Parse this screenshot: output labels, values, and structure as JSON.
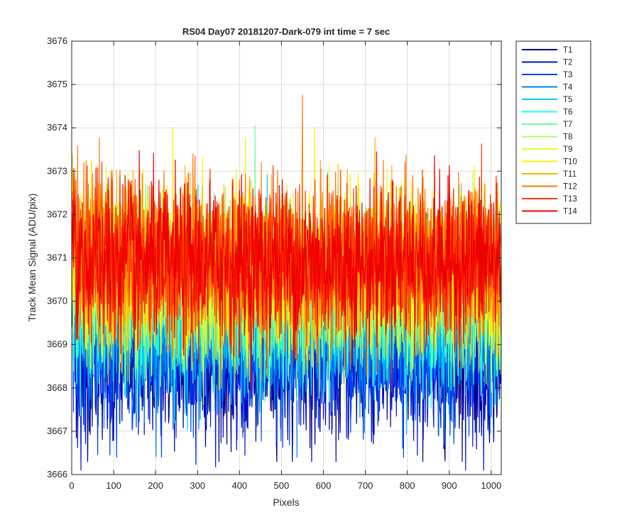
{
  "chart_data": {
    "type": "line",
    "title": "RS04 Day07 20181207-Dark-079 int time = 7 sec",
    "xlabel": "Pixels",
    "ylabel": "Track Mean Signal (ADU/pix)",
    "xlim": [
      0,
      1024
    ],
    "ylim": [
      3666,
      3676
    ],
    "xticks": [
      "0",
      "100",
      "200",
      "300",
      "400",
      "500",
      "600",
      "700",
      "800",
      "900",
      "1000"
    ],
    "yticks": [
      "3666",
      "3667",
      "3668",
      "3669",
      "3670",
      "3671",
      "3672",
      "3673",
      "3674",
      "3675",
      "3676"
    ],
    "grid": true,
    "legend_position": "outside-top-right",
    "noise_sd": 0.9,
    "series": [
      {
        "name": "T1",
        "color": "#00008f",
        "mean": 3668.6,
        "min": 3666.3
      },
      {
        "name": "T2",
        "color": "#0012d6",
        "mean": 3668.8,
        "min": 3666.1
      },
      {
        "name": "T3",
        "color": "#0045f5",
        "mean": 3669.0,
        "min": 3666.4
      },
      {
        "name": "T4",
        "color": "#0087f0",
        "mean": 3669.4,
        "min": 3666.4
      },
      {
        "name": "T5",
        "color": "#00c8ff",
        "mean": 3669.7,
        "min": 3666.8
      },
      {
        "name": "T6",
        "color": "#20ffe0",
        "mean": 3670.0,
        "min": 3667.0
      },
      {
        "name": "T7",
        "color": "#6cffa0",
        "mean": 3670.2,
        "min": 3667.2
      },
      {
        "name": "T8",
        "color": "#a8ff60",
        "mean": 3670.4,
        "min": 3667.3
      },
      {
        "name": "T9",
        "color": "#e0ff30",
        "mean": 3670.6,
        "min": 3667.5
      },
      {
        "name": "T10",
        "color": "#ffee00",
        "mean": 3670.8,
        "min": 3667.6
      },
      {
        "name": "T11",
        "color": "#ffb400",
        "mean": 3670.8,
        "min": 3667.7
      },
      {
        "name": "T12",
        "color": "#ff7800",
        "mean": 3670.9,
        "min": 3667.2
      },
      {
        "name": "T13",
        "color": "#ff3800",
        "mean": 3670.9,
        "min": 3667.8
      },
      {
        "name": "T14",
        "color": "#ef0000",
        "mean": 3670.9,
        "min": 3667.9
      }
    ]
  }
}
